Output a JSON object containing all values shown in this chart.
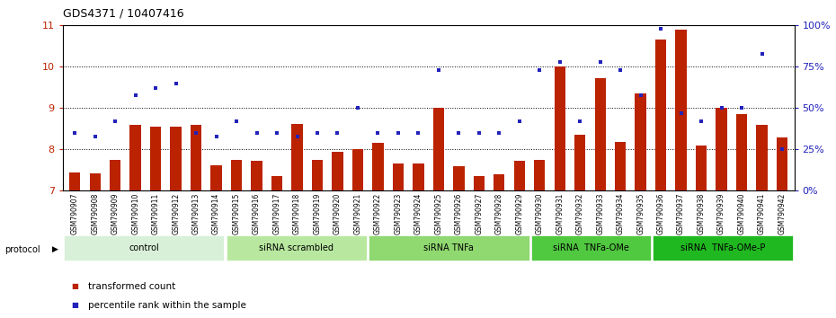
{
  "title": "GDS4371 / 10407416",
  "samples": [
    "GSM790907",
    "GSM790908",
    "GSM790909",
    "GSM790910",
    "GSM790911",
    "GSM790912",
    "GSM790913",
    "GSM790914",
    "GSM790915",
    "GSM790916",
    "GSM790917",
    "GSM790918",
    "GSM790919",
    "GSM790920",
    "GSM790921",
    "GSM790922",
    "GSM790923",
    "GSM790924",
    "GSM790925",
    "GSM790926",
    "GSM790927",
    "GSM790928",
    "GSM790929",
    "GSM790930",
    "GSM790931",
    "GSM790932",
    "GSM790933",
    "GSM790934",
    "GSM790935",
    "GSM790936",
    "GSM790937",
    "GSM790938",
    "GSM790939",
    "GSM790940",
    "GSM790941",
    "GSM790942"
  ],
  "bar_values": [
    7.45,
    7.42,
    7.75,
    8.6,
    8.55,
    8.55,
    8.6,
    7.62,
    7.75,
    7.72,
    7.35,
    8.62,
    7.75,
    7.95,
    8.0,
    8.15,
    7.65,
    7.65,
    9.0,
    7.6,
    7.35,
    7.4,
    7.72,
    7.75,
    10.0,
    8.35,
    9.72,
    8.18,
    9.35,
    10.65,
    10.9,
    8.1,
    9.0,
    8.85,
    8.6,
    8.3
  ],
  "percentile_values": [
    35,
    33,
    42,
    58,
    62,
    65,
    35,
    33,
    42,
    35,
    35,
    33,
    35,
    35,
    50,
    35,
    35,
    35,
    73,
    35,
    35,
    35,
    42,
    73,
    78,
    42,
    78,
    73,
    58,
    98,
    47,
    42,
    50,
    50,
    83,
    25
  ],
  "groups": [
    {
      "label": "control",
      "start": 0,
      "end": 8,
      "color": "#d8f0d8"
    },
    {
      "label": "siRNA scrambled",
      "start": 8,
      "end": 15,
      "color": "#b8e8a0"
    },
    {
      "label": "siRNA TNFa",
      "start": 15,
      "end": 23,
      "color": "#90d870"
    },
    {
      "label": "siRNA  TNFa-OMe",
      "start": 23,
      "end": 29,
      "color": "#50c840"
    },
    {
      "label": "siRNA  TNFa-OMe-P",
      "start": 29,
      "end": 36,
      "color": "#20b820"
    }
  ],
  "ymin": 7,
  "ymax": 11,
  "bar_color": "#bb2200",
  "blue_color": "#2222bb",
  "bar_width": 0.55,
  "xtick_bg": "#d8d8d8",
  "legend_items": [
    {
      "label": "transformed count",
      "color": "#bb2200"
    },
    {
      "label": "percentile rank within the sample",
      "color": "#2222bb"
    }
  ]
}
